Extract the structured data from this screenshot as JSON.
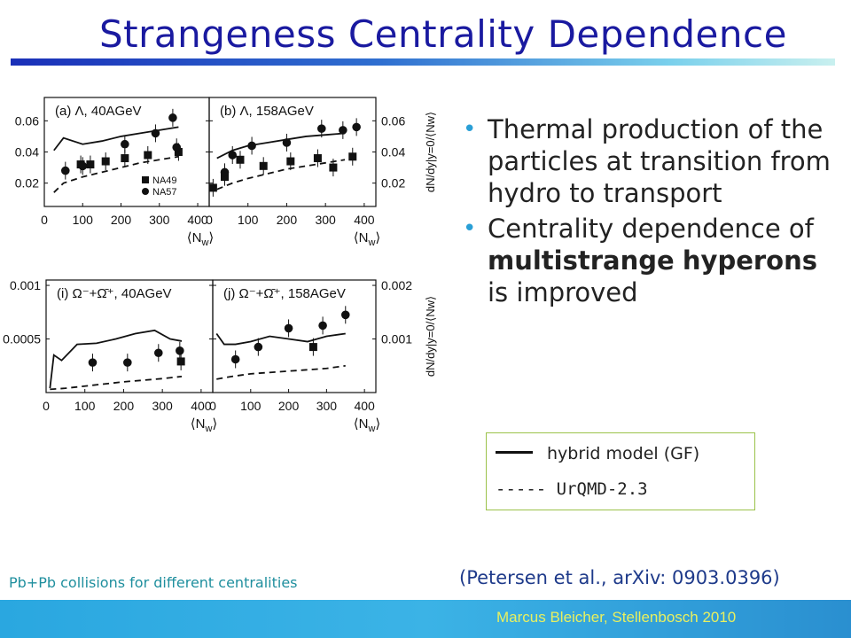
{
  "slide": {
    "title": "Strangeness Centrality Dependence",
    "bullets": [
      {
        "text": "Thermal production of the particles at transition from hydro to transport"
      },
      {
        "prefix": "Centrality dependence of ",
        "bold1": "multistrange",
        "mid": " ",
        "bold2": "hyperons",
        "suffix": " is improved"
      }
    ],
    "legend": {
      "solid": "hybrid model (GF)",
      "dashed": "----- UrQMD-2.3"
    },
    "caption": "Pb+Pb collisions for different centralities",
    "reference": "(Petersen et al., arXiv: 0903.0396)",
    "footer": "Marcus Bleicher, Stellenbosch 2010"
  },
  "colors": {
    "title": "#1a1aa0",
    "bullet": "#2a9fd6",
    "legend_border": "#9bc24a",
    "caption": "#1f8f9e",
    "footer": "#2aa7e0",
    "footer_text": "#e8f060"
  },
  "chart_data": [
    {
      "type": "scatter",
      "panel": "(a) Λ, 40AGeV",
      "x_ticks": [
        "0",
        "100",
        "200",
        "300",
        "400"
      ],
      "y_ticks": [
        "0.02",
        "0.04",
        "0.06"
      ],
      "xlim": [
        0,
        430
      ],
      "ylim": [
        0.005,
        0.075
      ],
      "legend": [
        "NA49",
        "NA57"
      ],
      "series": [
        {
          "name": "hybrid model (GF)",
          "style": "solid",
          "x": [
            25,
            50,
            100,
            150,
            200,
            250,
            300,
            350
          ],
          "y": [
            0.041,
            0.049,
            0.045,
            0.047,
            0.05,
            0.052,
            0.054,
            0.056
          ]
        },
        {
          "name": "UrQMD-2.3",
          "style": "dashed",
          "x": [
            25,
            50,
            100,
            150,
            200,
            250,
            300,
            350
          ],
          "y": [
            0.014,
            0.02,
            0.024,
            0.027,
            0.03,
            0.033,
            0.035,
            0.037
          ]
        },
        {
          "name": "NA49",
          "marker": "square",
          "x": [
            95,
            120,
            160,
            210,
            270,
            350
          ],
          "y": [
            0.032,
            0.032,
            0.034,
            0.036,
            0.038,
            0.04
          ]
        },
        {
          "name": "NA57",
          "marker": "circle",
          "x": [
            55,
            100,
            210,
            290,
            335,
            345
          ],
          "y": [
            0.028,
            0.031,
            0.045,
            0.052,
            0.062,
            0.043
          ]
        }
      ]
    },
    {
      "type": "scatter",
      "panel": "(b) Λ, 158AGeV",
      "x_ticks": [
        "0",
        "100",
        "200",
        "300",
        "400"
      ],
      "y_ticks": [
        "0.02",
        "0.04",
        "0.06"
      ],
      "y_axis_label": "dN/dy|y=0/⟨Nw⟩",
      "xlim": [
        0,
        430
      ],
      "ylim": [
        0.005,
        0.075
      ],
      "series": [
        {
          "name": "hybrid model (GF)",
          "style": "solid",
          "x": [
            20,
            60,
            100,
            150,
            200,
            250,
            300,
            350
          ],
          "y": [
            0.036,
            0.041,
            0.044,
            0.046,
            0.048,
            0.05,
            0.051,
            0.052
          ]
        },
        {
          "name": "UrQMD-2.3",
          "style": "dashed",
          "x": [
            20,
            60,
            100,
            150,
            200,
            250,
            300,
            350
          ],
          "y": [
            0.016,
            0.02,
            0.023,
            0.026,
            0.029,
            0.031,
            0.033,
            0.035
          ]
        },
        {
          "name": "NA49",
          "marker": "square",
          "x": [
            10,
            40,
            80,
            140,
            210,
            280,
            320,
            370
          ],
          "y": [
            0.017,
            0.024,
            0.035,
            0.031,
            0.034,
            0.036,
            0.03,
            0.037
          ]
        },
        {
          "name": "NA57",
          "marker": "circle",
          "x": [
            40,
            60,
            110,
            200,
            290,
            345,
            380
          ],
          "y": [
            0.027,
            0.038,
            0.044,
            0.046,
            0.055,
            0.054,
            0.056
          ]
        }
      ]
    },
    {
      "type": "scatter",
      "panel": "(i) Ω⁻+Ω̄⁺, 40AGeV",
      "x_ticks": [
        "0",
        "100",
        "200",
        "300",
        "400"
      ],
      "y_ticks": [
        "0.0005",
        "0.001"
      ],
      "xlim": [
        0,
        430
      ],
      "ylim": [
        0,
        0.00105
      ],
      "series": [
        {
          "name": "hybrid model (GF)",
          "style": "solid",
          "x": [
            10,
            20,
            40,
            80,
            130,
            180,
            230,
            280,
            320,
            350
          ],
          "y": [
            4e-05,
            0.00035,
            0.0003,
            0.00045,
            0.00046,
            0.0005,
            0.00055,
            0.00058,
            0.0005,
            0.00048
          ]
        },
        {
          "name": "UrQMD-2.3",
          "style": "dashed",
          "x": [
            10,
            50,
            100,
            200,
            300,
            350
          ],
          "y": [
            3e-05,
            4e-05,
            6e-05,
            0.0001,
            0.00013,
            0.00015
          ]
        },
        {
          "name": "data",
          "marker": "circle",
          "x": [
            120,
            210,
            290,
            345
          ],
          "y": [
            0.00028,
            0.00028,
            0.00037,
            0.00039
          ]
        },
        {
          "name": "data",
          "marker": "square",
          "x": [
            348
          ],
          "y": [
            0.00029
          ]
        }
      ]
    },
    {
      "type": "scatter",
      "panel": "(j) Ω⁻+Ω̄⁺, 158AGeV",
      "x_ticks": [
        "0",
        "100",
        "200",
        "300",
        "400"
      ],
      "y_ticks": [
        "0.001",
        "0.002"
      ],
      "y_axis_label": "dN/dy|y=0/⟨Nw⟩",
      "xlim": [
        0,
        430
      ],
      "ylim": [
        0,
        0.0021
      ],
      "series": [
        {
          "name": "hybrid model (GF)",
          "style": "solid",
          "x": [
            10,
            30,
            60,
            100,
            150,
            200,
            250,
            300,
            350
          ],
          "y": [
            0.0011,
            0.0009,
            0.0009,
            0.00095,
            0.00105,
            0.001,
            0.00095,
            0.00105,
            0.0011
          ]
        },
        {
          "name": "UrQMD-2.3",
          "style": "dashed",
          "x": [
            10,
            50,
            100,
            200,
            300,
            350
          ],
          "y": [
            0.00025,
            0.0003,
            0.00035,
            0.0004,
            0.00045,
            0.0005
          ]
        },
        {
          "name": "data",
          "marker": "circle",
          "x": [
            60,
            120,
            200,
            290,
            350
          ],
          "y": [
            0.00062,
            0.00085,
            0.0012,
            0.00125,
            0.00145
          ]
        },
        {
          "name": "data",
          "marker": "square",
          "x": [
            265
          ],
          "y": [
            0.00085
          ]
        }
      ]
    }
  ]
}
